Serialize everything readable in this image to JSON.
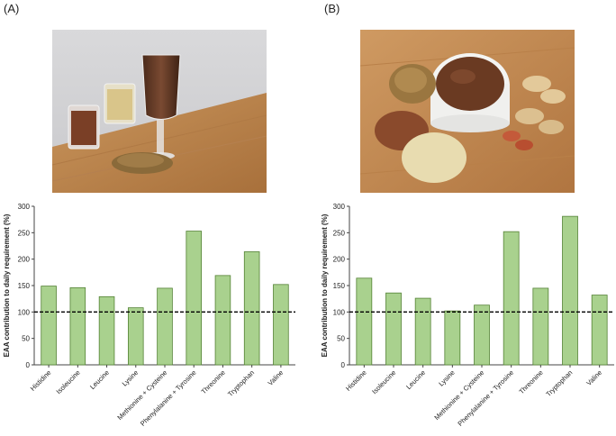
{
  "panels": [
    {
      "label": "(A)",
      "photo": "Glass of chocolate drink with small glasses of cocoa powder and flour, and grains on a wooden board"
    },
    {
      "label": "(B)",
      "photo": "Bowl of chocolate spread with cocoa powder, flour, grains and peanuts on a wooden board"
    }
  ],
  "colors": {
    "bar_fill": "#a9d18e",
    "bar_stroke": "#548235",
    "axis": "#444444",
    "ref_line": "#000000"
  },
  "chart_data": [
    {
      "type": "bar",
      "title": "",
      "xlabel": "",
      "ylabel": "EAA contribution to daily requirement (%)",
      "categories": [
        "Histidine",
        "Isoleucine",
        "Leucine",
        "Lysine",
        "Methionine + Cysteine",
        "Phenylalanine + Tyrosine",
        "Threonine",
        "Tryptophan",
        "Valine"
      ],
      "values": [
        149,
        146,
        129,
        108,
        145,
        253,
        169,
        214,
        152
      ],
      "ylim": [
        0,
        300
      ],
      "yticks": [
        0,
        50,
        100,
        150,
        200,
        250,
        300
      ],
      "reference_line": 100
    },
    {
      "type": "bar",
      "title": "",
      "xlabel": "",
      "ylabel": "EAA contribution to daily requirement (%)",
      "categories": [
        "Histidine",
        "Isoleucine",
        "Leucine",
        "Lysine",
        "Methionine + Cysteine",
        "Phenylalanine + Tyrosine",
        "Threonine",
        "Tryptophan",
        "Valine"
      ],
      "values": [
        164,
        136,
        126,
        102,
        113,
        252,
        145,
        281,
        132
      ],
      "ylim": [
        0,
        300
      ],
      "yticks": [
        0,
        50,
        100,
        150,
        200,
        250,
        300
      ],
      "reference_line": 100
    }
  ]
}
